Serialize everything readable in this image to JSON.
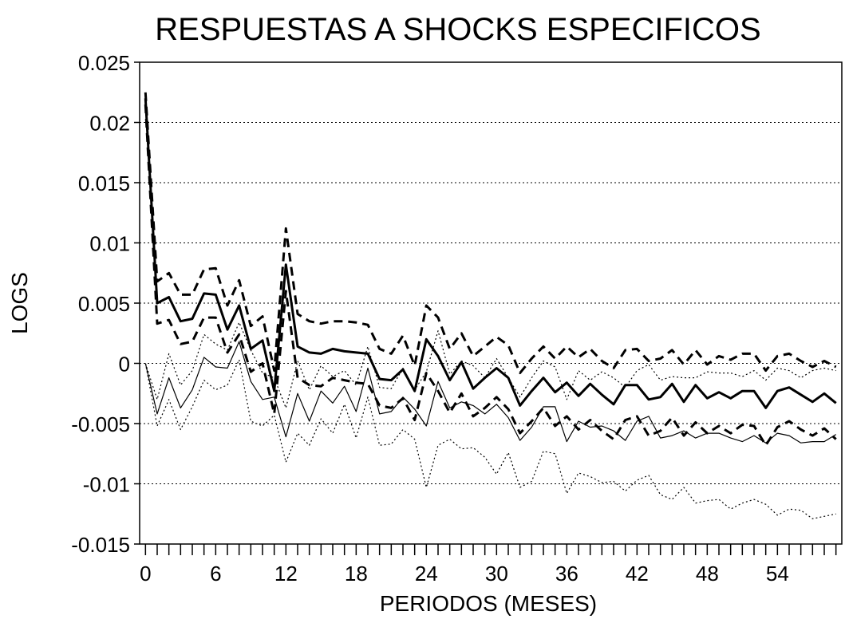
{
  "chart_data": {
    "type": "line",
    "title": "RESPUESTAS A SHOCKS ESPECIFICOS",
    "xlabel": "PERIODOS (MESES)",
    "ylabel": "LOGS",
    "xlim": [
      -0.5,
      59.5
    ],
    "ylim": [
      -0.015,
      0.025
    ],
    "x_ticks": [
      0,
      6,
      12,
      18,
      24,
      30,
      36,
      42,
      48,
      54
    ],
    "y_ticks": [
      0.025,
      0.02,
      0.015,
      0.01,
      0.005,
      0,
      -0.005,
      -0.01,
      -0.015
    ],
    "y_tick_labels": [
      "0.025",
      "0.02",
      "0.015",
      "0.01",
      "0.005",
      "0",
      "-0.005",
      "-0.01",
      "-0.015"
    ],
    "grid": "horizontal dotted",
    "series": [
      {
        "style": "thick-solid",
        "x": [
          0,
          1,
          2,
          3,
          4,
          5,
          6,
          7,
          8,
          9,
          10,
          11,
          12,
          13,
          14,
          15,
          16,
          17,
          18,
          19,
          20,
          21,
          22,
          23,
          24,
          25,
          26,
          27,
          28,
          29,
          30,
          31,
          32,
          33,
          34,
          35,
          36,
          37,
          38,
          39,
          40,
          41,
          42,
          43,
          44,
          45,
          46,
          47,
          48,
          49,
          50,
          51,
          52,
          53,
          54,
          55,
          56,
          57,
          58,
          59
        ],
        "values": [
          0.022,
          0.005,
          0.0055,
          0.0035,
          0.0037,
          0.0058,
          0.0057,
          0.0028,
          0.0048,
          0.0012,
          0.0019,
          -0.0023,
          0.0082,
          0.0014,
          0.0009,
          0.0008,
          0.0012,
          0.001,
          0.0009,
          0.0008,
          -0.0013,
          -0.0014,
          -0.0005,
          -0.0023,
          0.002,
          0.0006,
          -0.0014,
          0.0001,
          -0.0021,
          -0.0012,
          -0.0004,
          -0.0012,
          -0.0035,
          -0.0023,
          -0.0012,
          -0.0024,
          -0.0016,
          -0.0027,
          -0.0017,
          -0.0026,
          -0.0034,
          -0.0018,
          -0.0018,
          -0.003,
          -0.0028,
          -0.0017,
          -0.0032,
          -0.0018,
          -0.0029,
          -0.0024,
          -0.0029,
          -0.0023,
          -0.0023,
          -0.0037,
          -0.0023,
          -0.002,
          -0.0026,
          -0.0032,
          -0.0025,
          -0.0033
        ]
      },
      {
        "style": "thick-dashed",
        "x": [
          0,
          1,
          2,
          3,
          4,
          5,
          6,
          7,
          8,
          9,
          10,
          11,
          12,
          13,
          14,
          15,
          16,
          17,
          18,
          19,
          20,
          21,
          22,
          23,
          24,
          25,
          26,
          27,
          28,
          29,
          30,
          31,
          32,
          33,
          34,
          35,
          36,
          37,
          38,
          39,
          40,
          41,
          42,
          43,
          44,
          45,
          46,
          47,
          48,
          49,
          50,
          51,
          52,
          53,
          54,
          55,
          56,
          57,
          58,
          59
        ],
        "values": [
          0.0225,
          0.0068,
          0.0075,
          0.0057,
          0.0057,
          0.0078,
          0.0079,
          0.0048,
          0.0069,
          0.0031,
          0.0039,
          -0.0006,
          0.0112,
          0.0041,
          0.0035,
          0.0033,
          0.0035,
          0.0035,
          0.0034,
          0.0032,
          0.0012,
          0.0008,
          0.0023,
          -0.0002,
          0.0048,
          0.0038,
          0.0012,
          0.0025,
          0.0006,
          0.0014,
          0.0022,
          0.0015,
          -0.0008,
          0.0004,
          0.0014,
          0.0004,
          0.0014,
          0.0005,
          0.0012,
          0.0002,
          -0.0004,
          0.0011,
          0.0012,
          0.0002,
          0.0004,
          0.0011,
          -0.0001,
          0.0011,
          -0.0001,
          0.0006,
          0.0003,
          0.0008,
          0.0008,
          -0.0006,
          0.0006,
          0.0008,
          0.0002,
          -0.0003,
          0.0002,
          -0.0003
        ]
      },
      {
        "style": "thick-dashed",
        "x": [
          0,
          1,
          2,
          3,
          4,
          5,
          6,
          7,
          8,
          9,
          10,
          11,
          12,
          13,
          14,
          15,
          16,
          17,
          18,
          19,
          20,
          21,
          22,
          23,
          24,
          25,
          26,
          27,
          28,
          29,
          30,
          31,
          32,
          33,
          34,
          35,
          36,
          37,
          38,
          39,
          40,
          41,
          42,
          43,
          44,
          45,
          46,
          47,
          48,
          49,
          50,
          51,
          52,
          53,
          54,
          55,
          56,
          57,
          58,
          59
        ],
        "values": [
          0.0215,
          0.0033,
          0.0036,
          0.0016,
          0.0018,
          0.0038,
          0.0038,
          0.0009,
          0.0024,
          -0.0007,
          0.0,
          -0.0042,
          0.006,
          -0.0012,
          -0.0018,
          -0.0019,
          -0.0012,
          -0.0014,
          -0.0016,
          -0.0017,
          -0.0035,
          -0.0037,
          -0.0029,
          -0.0047,
          -0.0008,
          -0.0023,
          -0.0041,
          -0.0025,
          -0.0044,
          -0.0037,
          -0.0028,
          -0.0038,
          -0.0058,
          -0.0048,
          -0.0037,
          -0.0052,
          -0.0044,
          -0.0055,
          -0.0047,
          -0.0056,
          -0.0063,
          -0.0047,
          -0.0044,
          -0.006,
          -0.0056,
          -0.0045,
          -0.006,
          -0.0049,
          -0.0058,
          -0.0052,
          -0.0058,
          -0.0051,
          -0.0052,
          -0.0068,
          -0.0053,
          -0.0048,
          -0.0055,
          -0.006,
          -0.0054,
          -0.0063
        ]
      },
      {
        "style": "thin-solid",
        "x": [
          0,
          1,
          2,
          3,
          4,
          5,
          6,
          7,
          8,
          9,
          10,
          11,
          12,
          13,
          14,
          15,
          16,
          17,
          18,
          19,
          20,
          21,
          22,
          23,
          24,
          25,
          26,
          27,
          28,
          29,
          30,
          31,
          32,
          33,
          34,
          35,
          36,
          37,
          38,
          39,
          40,
          41,
          42,
          43,
          44,
          45,
          46,
          47,
          48,
          49,
          50,
          51,
          52,
          53,
          54,
          55,
          56,
          57,
          58,
          59
        ],
        "values": [
          0.0,
          -0.0042,
          -0.0012,
          -0.0037,
          -0.0022,
          0.0005,
          -0.0003,
          -0.0004,
          0.0018,
          -0.0015,
          -0.003,
          -0.0028,
          -0.0061,
          -0.0025,
          -0.0048,
          -0.0023,
          -0.0033,
          -0.0019,
          -0.004,
          -0.0004,
          -0.0042,
          -0.004,
          -0.0028,
          -0.0038,
          -0.0052,
          -0.0015,
          -0.0037,
          -0.0032,
          -0.0035,
          -0.0042,
          -0.0034,
          -0.0045,
          -0.0064,
          -0.0053,
          -0.0036,
          -0.0036,
          -0.0065,
          -0.0048,
          -0.0053,
          -0.0052,
          -0.0056,
          -0.0064,
          -0.0048,
          -0.0044,
          -0.0062,
          -0.006,
          -0.0056,
          -0.0062,
          -0.0058,
          -0.0058,
          -0.0062,
          -0.0065,
          -0.006,
          -0.0066,
          -0.0058,
          -0.006,
          -0.0066,
          -0.0065,
          -0.0065,
          -0.0059
        ]
      },
      {
        "style": "thin-dotted",
        "x": [
          0,
          1,
          2,
          3,
          4,
          5,
          6,
          7,
          8,
          9,
          10,
          11,
          12,
          13,
          14,
          15,
          16,
          17,
          18,
          19,
          20,
          21,
          22,
          23,
          24,
          25,
          26,
          27,
          28,
          29,
          30,
          31,
          32,
          33,
          34,
          35,
          36,
          37,
          38,
          39,
          40,
          41,
          42,
          43,
          44,
          45,
          46,
          47,
          48,
          49,
          50,
          51,
          52,
          53,
          54,
          55,
          56,
          57,
          58,
          59
        ],
        "values": [
          0.0,
          -0.0052,
          -0.003,
          -0.0055,
          -0.0036,
          -0.0014,
          -0.0022,
          -0.0018,
          0.0003,
          -0.0048,
          -0.0052,
          -0.0043,
          -0.0082,
          -0.0058,
          -0.0068,
          -0.0046,
          -0.0058,
          -0.0034,
          -0.0062,
          -0.0028,
          -0.0068,
          -0.0067,
          -0.0055,
          -0.0063,
          -0.0103,
          -0.0068,
          -0.0063,
          -0.0071,
          -0.007,
          -0.0078,
          -0.0092,
          -0.0074,
          -0.0103,
          -0.0098,
          -0.0073,
          -0.0075,
          -0.0108,
          -0.0091,
          -0.0094,
          -0.0099,
          -0.0098,
          -0.0106,
          -0.0097,
          -0.0093,
          -0.0109,
          -0.0113,
          -0.0103,
          -0.0116,
          -0.0114,
          -0.0113,
          -0.0121,
          -0.0116,
          -0.0113,
          -0.0117,
          -0.0126,
          -0.0121,
          -0.0122,
          -0.0129,
          -0.0127,
          -0.0125
        ]
      },
      {
        "style": "thin-dotted",
        "x": [
          0,
          1,
          2,
          3,
          4,
          5,
          6,
          7,
          8,
          9,
          10,
          11,
          12,
          13,
          14,
          15,
          16,
          17,
          18,
          19,
          20,
          21,
          22,
          23,
          24,
          25,
          26,
          27,
          28,
          29,
          30,
          31,
          32,
          33,
          34,
          35,
          36,
          37,
          38,
          39,
          40,
          41,
          42,
          43,
          44,
          45,
          46,
          47,
          48,
          49,
          50,
          51,
          52,
          53,
          54,
          55,
          56,
          57,
          58,
          59
        ],
        "values": [
          0.0,
          -0.003,
          0.0008,
          -0.0018,
          -0.0006,
          0.0024,
          0.0016,
          0.0011,
          0.0034,
          0.0011,
          -0.0008,
          -0.0012,
          -0.0037,
          0.0002,
          -0.0022,
          -0.0002,
          -0.0011,
          -0.0006,
          -0.0018,
          0.0014,
          -0.002,
          -0.0021,
          -0.0004,
          -0.0022,
          -0.0007,
          0.0027,
          -0.0009,
          0.0002,
          -0.0002,
          -0.0012,
          0.0004,
          -0.0012,
          -0.0028,
          -0.0012,
          0.0002,
          -0.0003,
          -0.003,
          -0.0006,
          -0.0014,
          -0.0007,
          -0.0012,
          -0.002,
          -0.0006,
          -0.0001,
          -0.0014,
          -0.0011,
          -0.0012,
          -0.0012,
          -0.0007,
          -0.0008,
          -0.0008,
          -0.0011,
          -0.0006,
          -0.0014,
          -0.0004,
          -0.0006,
          -0.0012,
          -0.0006,
          -0.0004,
          -0.0006
        ]
      }
    ]
  }
}
